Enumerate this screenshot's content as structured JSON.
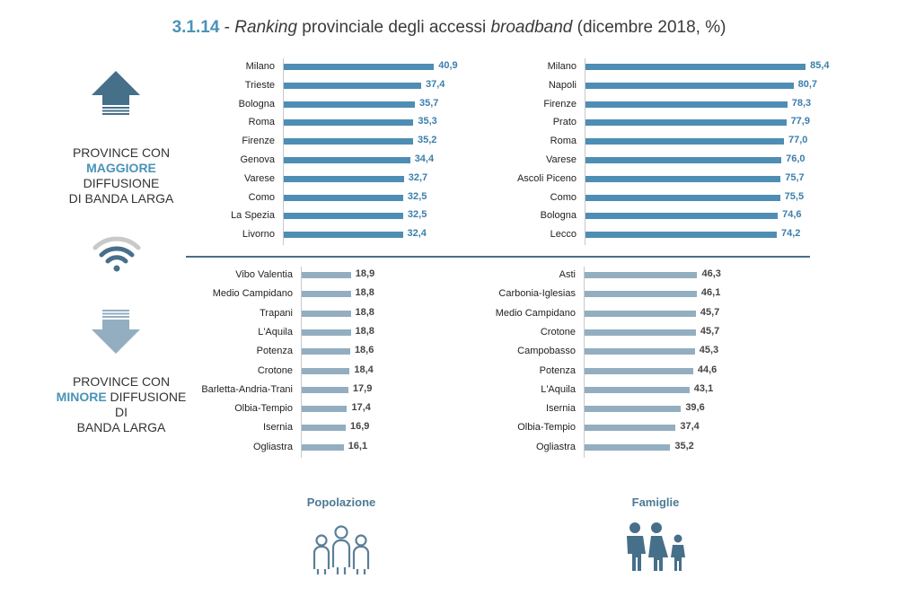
{
  "title": {
    "number": "3.1.14",
    "sep": " - ",
    "word1": "Ranking",
    "mid": " provinciale degli accessi ",
    "word2": "broadband",
    "tail": " (dicembre 2018, %)"
  },
  "labels": {
    "top": {
      "line1": "PROVINCE CON",
      "highlight": "MAGGIORE",
      "line2_rest": " DIFFUSIONE",
      "line3": "DI BANDA LARGA"
    },
    "bottom": {
      "line1": "PROVINCE CON",
      "highlight": "MINORE",
      "line2_rest": " DIFFUSIONE DI",
      "line3": "BANDA LARGA"
    }
  },
  "legend": {
    "left": "Popolazione",
    "right": "Famiglie"
  },
  "colors": {
    "accent": "#4a93b8",
    "top_bar": "#4e8db4",
    "bottom_bar": "#93aec0",
    "divider": "#466f8a",
    "icon": "#466f8a"
  },
  "icons": [
    "arrow-up-icon",
    "wifi-icon",
    "arrow-down-icon",
    "population-icon",
    "family-icon"
  ],
  "chart_data": [
    {
      "type": "bar",
      "orientation": "horizontal",
      "group": "Popolazione - maggiore diffusione",
      "categories": [
        "Milano",
        "Trieste",
        "Bologna",
        "Roma",
        "Firenze",
        "Genova",
        "Varese",
        "Como",
        "La Spezia",
        "Livorno"
      ],
      "values": [
        40.9,
        37.4,
        35.7,
        35.3,
        35.2,
        34.4,
        32.7,
        32.5,
        32.5,
        32.4
      ],
      "labels": [
        "40,9",
        "37,4",
        "35,7",
        "35,3",
        "35,2",
        "34,4",
        "32,7",
        "32,5",
        "32,5",
        "32,4"
      ]
    },
    {
      "type": "bar",
      "orientation": "horizontal",
      "group": "Famiglie - maggiore diffusione",
      "categories": [
        "Milano",
        "Napoli",
        "Firenze",
        "Prato",
        "Roma",
        "Varese",
        "Ascoli Piceno",
        "Como",
        "Bologna",
        "Lecco"
      ],
      "values": [
        85.4,
        80.7,
        78.3,
        77.9,
        77.0,
        76.0,
        75.7,
        75.5,
        74.6,
        74.2
      ],
      "labels": [
        "85,4",
        "80,7",
        "78,3",
        "77,9",
        "77,0",
        "76,0",
        "75,7",
        "75,5",
        "74,6",
        "74,2"
      ]
    },
    {
      "type": "bar",
      "orientation": "horizontal",
      "group": "Popolazione - minore diffusione",
      "categories": [
        "Vibo Valentia",
        "Medio Campidano",
        "Trapani",
        "L'Aquila",
        "Potenza",
        "Crotone",
        "Barletta-Andria-Trani",
        "Olbia-Tempio",
        "Isernia",
        "Ogliastra"
      ],
      "values": [
        18.9,
        18.8,
        18.8,
        18.8,
        18.6,
        18.4,
        17.9,
        17.4,
        16.9,
        16.1
      ],
      "labels": [
        "18,9",
        "18,8",
        "18,8",
        "18,8",
        "18,6",
        "18,4",
        "17,9",
        "17,4",
        "16,9",
        "16,1"
      ]
    },
    {
      "type": "bar",
      "orientation": "horizontal",
      "group": "Famiglie - minore diffusione",
      "categories": [
        "Asti",
        "Carbonia-Iglesias",
        "Medio Campidano",
        "Crotone",
        "Campobasso",
        "Potenza",
        "L'Aquila",
        "Isernia",
        "Olbia-Tempio",
        "Ogliastra"
      ],
      "values": [
        46.3,
        46.1,
        45.7,
        45.7,
        45.3,
        44.6,
        43.1,
        39.6,
        37.4,
        35.2
      ],
      "labels": [
        "46,3",
        "46,1",
        "45,7",
        "45,7",
        "45,3",
        "44,6",
        "43,1",
        "39,6",
        "37,4",
        "35,2"
      ]
    }
  ]
}
